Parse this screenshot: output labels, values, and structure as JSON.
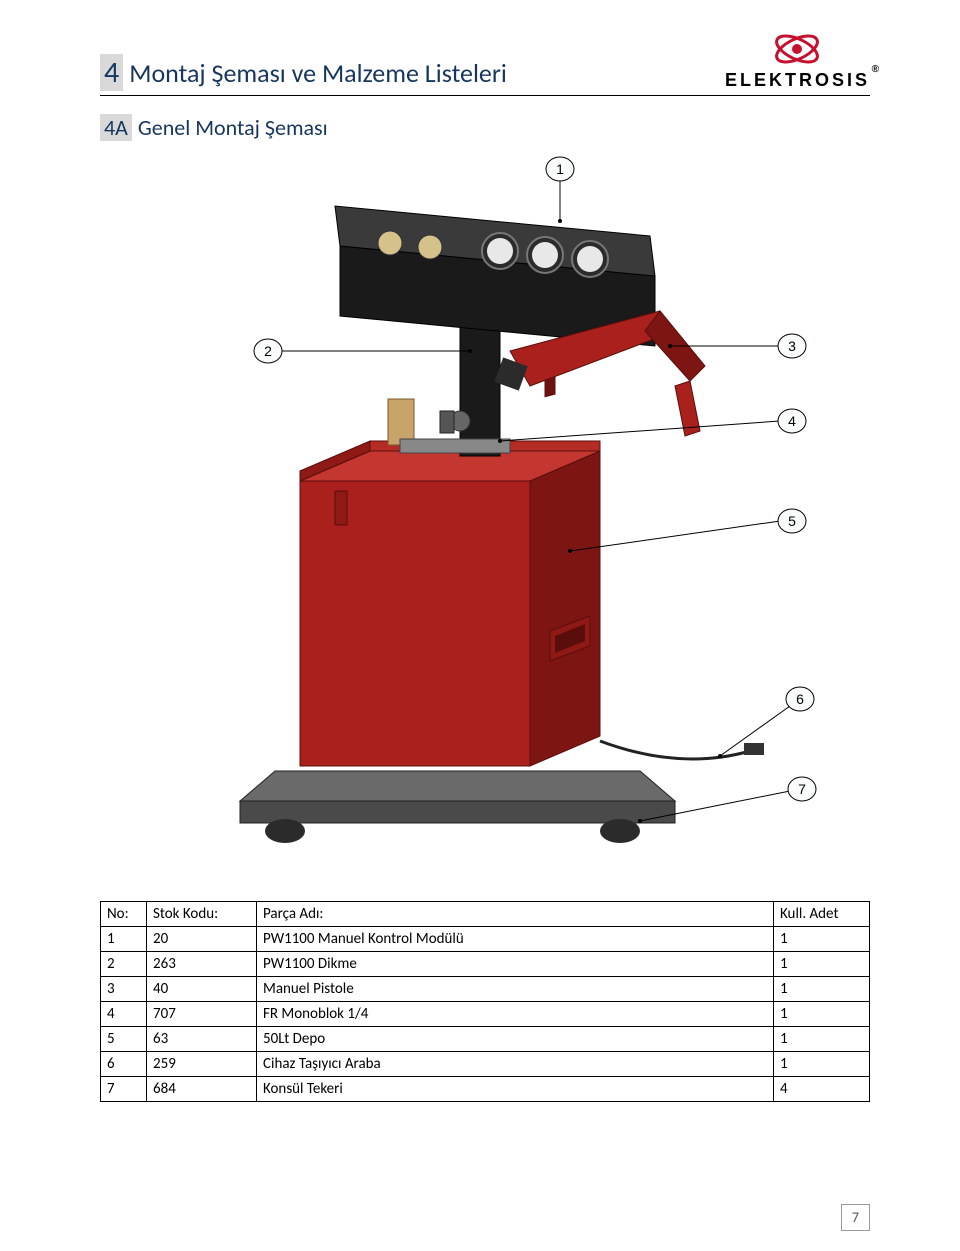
{
  "header": {
    "section_number": "4",
    "section_title": "Montaj Şeması ve Malzeme Listeleri",
    "logo_text": "ELEKTROSIS"
  },
  "subsection": {
    "number": "4A",
    "title": "Genel Montaj Şeması"
  },
  "diagram": {
    "callouts": [
      "1",
      "2",
      "3",
      "4",
      "5",
      "6",
      "7"
    ],
    "colors": {
      "body": "#a9201c",
      "body_shade": "#7d1613",
      "panel": "#2b2b2b",
      "panel_face": "#3a3a3a",
      "base": "#4a4a4a",
      "base_top": "#6a6a6a",
      "knob": "#616161",
      "leader": "#000000",
      "callout_fill": "#fafcfc",
      "callout_stroke": "#000000"
    }
  },
  "table": {
    "headers": {
      "no": "No:",
      "stok": "Stok Kodu:",
      "adi": "Parça Adı:",
      "adet": "Kull. Adet"
    },
    "rows": [
      {
        "no": "1",
        "stok": "20",
        "adi": "PW1100 Manuel Kontrol Modülü",
        "adet": "1"
      },
      {
        "no": "2",
        "stok": "263",
        "adi": "PW1100 Dikme",
        "adet": "1"
      },
      {
        "no": "3",
        "stok": "40",
        "adi": "Manuel Pistole",
        "adet": "1"
      },
      {
        "no": "4",
        "stok": "707",
        "adi": "FR Monoblok 1/4",
        "adet": "1"
      },
      {
        "no": "5",
        "stok": "63",
        "adi": "50Lt Depo",
        "adet": "1"
      },
      {
        "no": "6",
        "stok": "259",
        "adi": "Cihaz Taşıyıcı Araba",
        "adet": "1"
      },
      {
        "no": "7",
        "stok": "684",
        "adi": "Konsül Tekeri",
        "adet": "4"
      }
    ]
  },
  "page_number": "7"
}
